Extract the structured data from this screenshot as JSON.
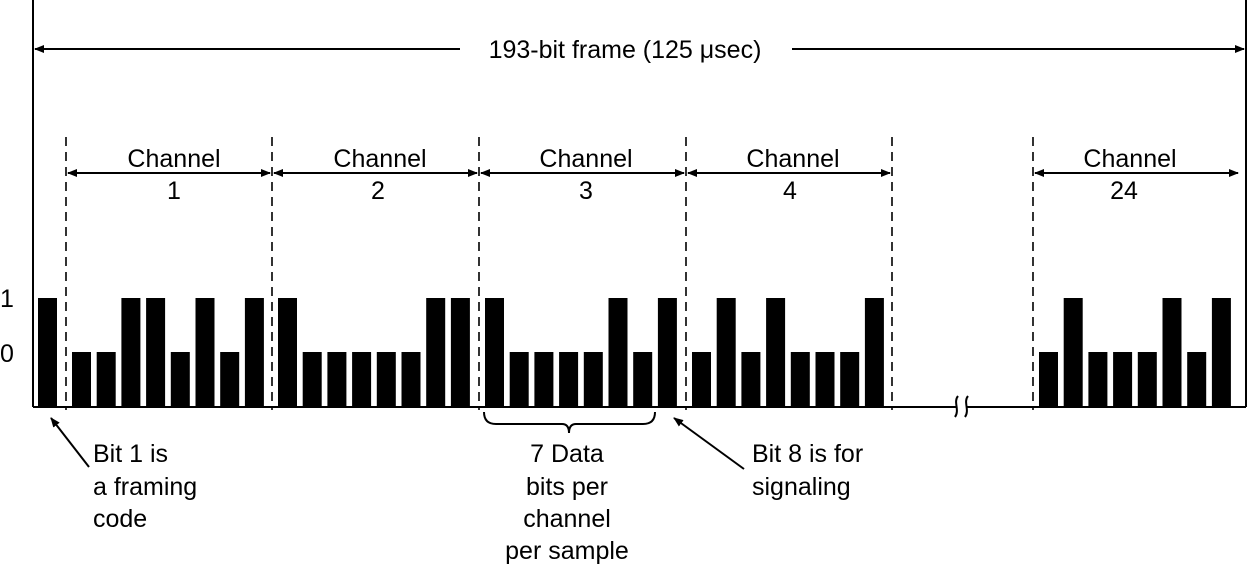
{
  "frame": {
    "label": "193-bit frame  (125 μsec)"
  },
  "levels": {
    "high": "1",
    "low": "0"
  },
  "framing_bit": 1,
  "channels": [
    {
      "title": "Channel",
      "number": "1",
      "bits": [
        0,
        0,
        1,
        1,
        0,
        1,
        0,
        1
      ]
    },
    {
      "title": "Channel",
      "number": "2",
      "bits": [
        1,
        0,
        0,
        0,
        0,
        0,
        1,
        1
      ]
    },
    {
      "title": "Channel",
      "number": "3",
      "bits": [
        1,
        0,
        0,
        0,
        0,
        1,
        0,
        1
      ]
    },
    {
      "title": "Channel",
      "number": "4",
      "bits": [
        0,
        1,
        0,
        1,
        0,
        0,
        0,
        1
      ]
    },
    {
      "title": "Channel",
      "number": "24",
      "bits": [
        0,
        1,
        0,
        0,
        0,
        1,
        0,
        1
      ]
    }
  ],
  "annotations": {
    "framing": [
      "Bit 1 is",
      "a framing",
      "code"
    ],
    "data": [
      "7 Data",
      "bits per",
      "channel",
      "per sample"
    ],
    "signaling": [
      "Bit 8 is for",
      "signaling"
    ]
  }
}
